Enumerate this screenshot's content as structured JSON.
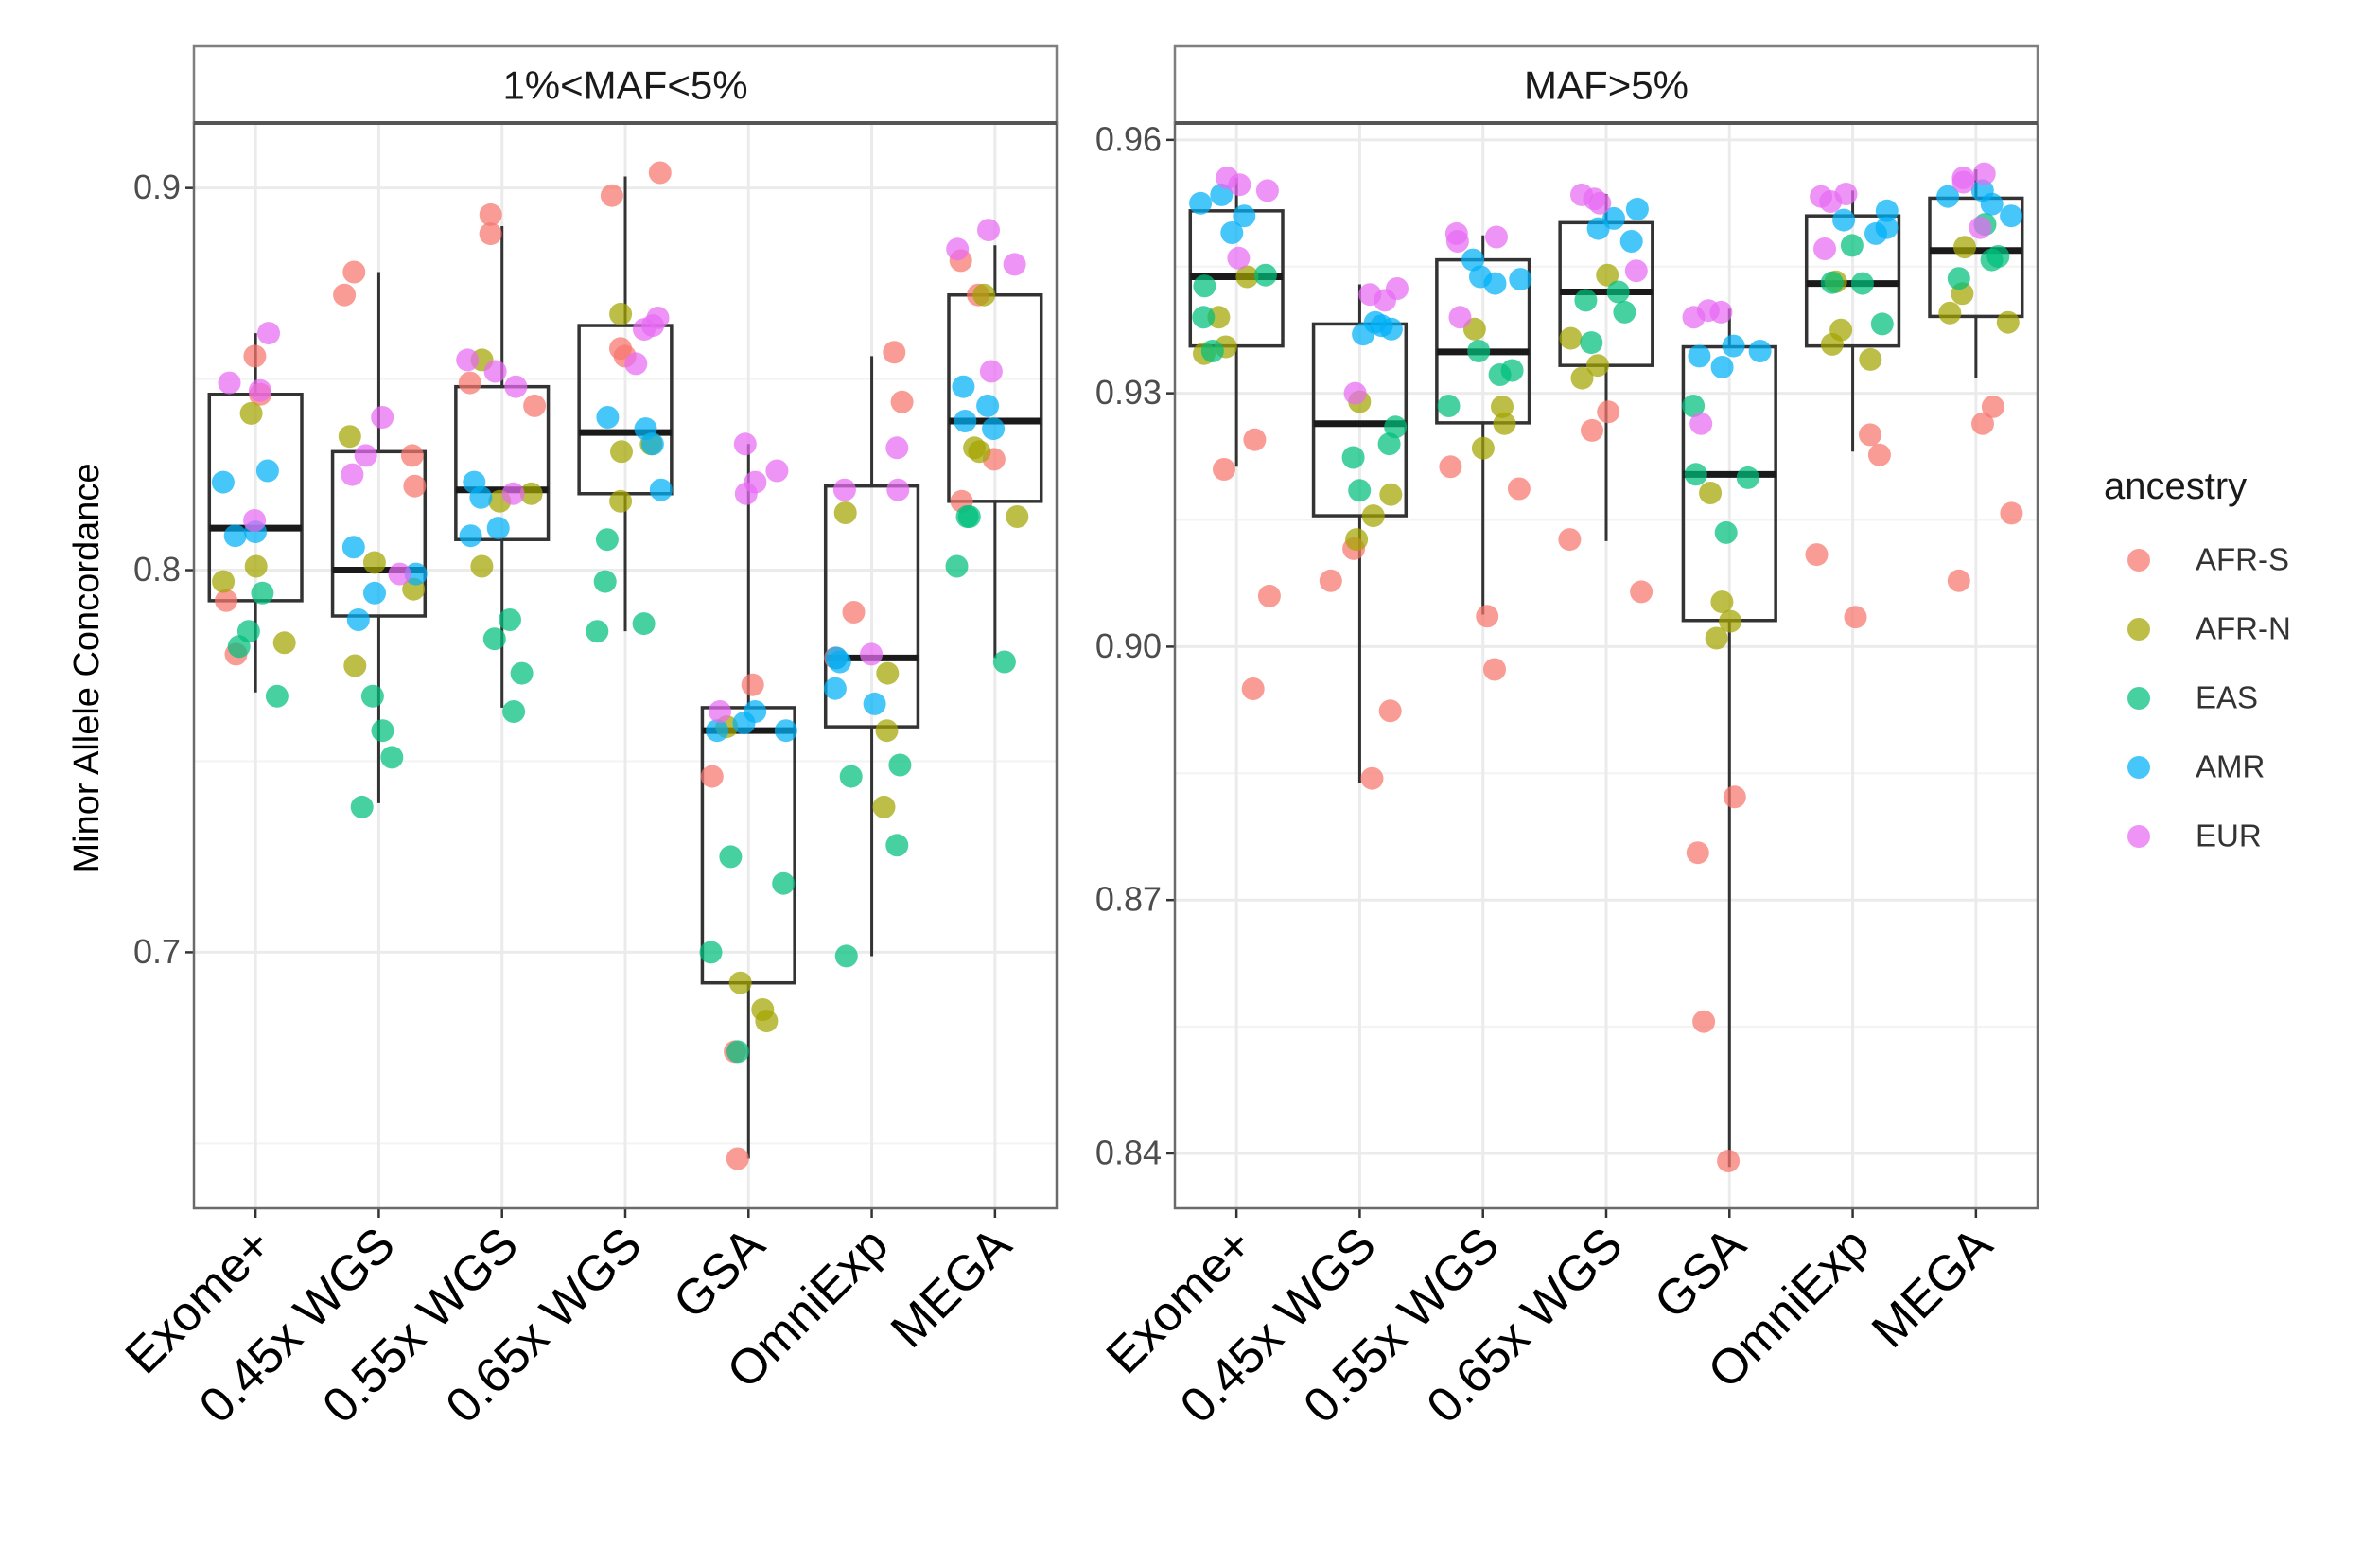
{
  "chart_data": {
    "type": "boxplot+jitter",
    "ylabel": "Minor Allele Concordance",
    "xlabel": "",
    "categories": [
      "Exome+",
      "0.45x WGS",
      "0.55x WGS",
      "0.65x WGS",
      "GSA",
      "OmniExp",
      "MEGA"
    ],
    "legend": {
      "title": "ancestry",
      "position": "right",
      "items": [
        {
          "name": "AFR-S",
          "color": "#F8766D"
        },
        {
          "name": "AFR-N",
          "color": "#A3A500"
        },
        {
          "name": "EAS",
          "color": "#00BF7D"
        },
        {
          "name": "AMR",
          "color": "#00B0F6"
        },
        {
          "name": "EUR",
          "color": "#E76BF3"
        }
      ]
    },
    "panels": [
      {
        "title": "1%<MAF<5%",
        "ylim": [
          0.633,
          0.917
        ],
        "yticks": [
          0.7,
          0.8,
          0.9
        ],
        "ytick_labels": [
          "0.7",
          "0.8",
          "0.9"
        ],
        "minor_gridlines": [
          0.65,
          0.75,
          0.85
        ],
        "boxes": [
          {
            "category": "Exome+",
            "lower": 0.768,
            "q1": 0.792,
            "median": 0.811,
            "q3": 0.846,
            "upper": 0.862
          },
          {
            "category": "0.45x WGS",
            "lower": 0.739,
            "q1": 0.788,
            "median": 0.8,
            "q3": 0.831,
            "upper": 0.878
          },
          {
            "category": "0.55x WGS",
            "lower": 0.764,
            "q1": 0.808,
            "median": 0.821,
            "q3": 0.848,
            "upper": 0.89
          },
          {
            "category": "0.65x WGS",
            "lower": 0.784,
            "q1": 0.82,
            "median": 0.836,
            "q3": 0.864,
            "upper": 0.903
          },
          {
            "category": "GSA",
            "lower": 0.646,
            "q1": 0.692,
            "median": 0.758,
            "q3": 0.764,
            "upper": 0.833
          },
          {
            "category": "OmniExp",
            "lower": 0.699,
            "q1": 0.759,
            "median": 0.777,
            "q3": 0.822,
            "upper": 0.856
          },
          {
            "category": "MEGA",
            "lower": 0.777,
            "q1": 0.818,
            "median": 0.839,
            "q3": 0.872,
            "upper": 0.885
          }
        ],
        "points": {
          "Exome+": {
            "AFR-S": [
              0.856,
              0.846,
              0.792,
              0.778
            ],
            "AFR-N": [
              0.841,
              0.801,
              0.797,
              0.781
            ],
            "EAS": [
              0.794,
              0.784,
              0.78,
              0.767
            ],
            "AMR": [
              0.826,
              0.823,
              0.81,
              0.809
            ],
            "EUR": [
              0.862,
              0.849,
              0.847,
              0.813
            ]
          },
          "0.45x WGS": {
            "AFR-S": [
              0.878,
              0.872,
              0.83,
              0.822
            ],
            "AFR-N": [
              0.835,
              0.802,
              0.795,
              0.775
            ],
            "EAS": [
              0.767,
              0.758,
              0.751,
              0.738
            ],
            "AMR": [
              0.806,
              0.799,
              0.794,
              0.787
            ],
            "EUR": [
              0.84,
              0.83,
              0.825,
              0.799
            ]
          },
          "0.55x WGS": {
            "AFR-S": [
              0.893,
              0.888,
              0.849,
              0.843
            ],
            "AFR-N": [
              0.855,
              0.82,
              0.818,
              0.801
            ],
            "EAS": [
              0.787,
              0.782,
              0.773,
              0.763
            ],
            "AMR": [
              0.823,
              0.819,
              0.811,
              0.809
            ],
            "EUR": [
              0.855,
              0.852,
              0.848,
              0.82
            ]
          },
          "0.65x WGS": {
            "AFR-S": [
              0.904,
              0.898,
              0.858,
              0.856
            ],
            "AFR-N": [
              0.867,
              0.833,
              0.831,
              0.818
            ],
            "EAS": [
              0.808,
              0.797,
              0.786,
              0.784
            ],
            "AMR": [
              0.84,
              0.837,
              0.833,
              0.821
            ],
            "EUR": [
              0.866,
              0.864,
              0.863,
              0.854
            ]
          },
          "GSA": {
            "AFR-S": [
              0.77,
              0.746,
              0.674,
              0.646
            ],
            "AFR-N": [
              0.759,
              0.692,
              0.685,
              0.682
            ],
            "EAS": [
              0.725,
              0.718,
              0.7,
              0.674
            ],
            "AMR": [
              0.763,
              0.76,
              0.758,
              0.758
            ],
            "EUR": [
              0.833,
              0.826,
              0.823,
              0.82,
              0.763
            ]
          },
          "OmniExp": {
            "AFR-S": [
              0.857,
              0.844,
              0.789,
              0.777
            ],
            "AFR-N": [
              0.815,
              0.773,
              0.758,
              0.738
            ],
            "EAS": [
              0.749,
              0.746,
              0.728,
              0.699
            ],
            "AMR": [
              0.777,
              0.776,
              0.769,
              0.765
            ],
            "EUR": [
              0.832,
              0.821,
              0.821,
              0.778
            ]
          },
          "MEGA": {
            "AFR-S": [
              0.881,
              0.872,
              0.829,
              0.818
            ],
            "AFR-N": [
              0.872,
              0.832,
              0.831,
              0.814
            ],
            "EAS": [
              0.814,
              0.814,
              0.801,
              0.776
            ],
            "AMR": [
              0.848,
              0.843,
              0.839,
              0.837
            ],
            "EUR": [
              0.889,
              0.884,
              0.88,
              0.852
            ]
          }
        }
      },
      {
        "title": "MAF>5%",
        "ylim": [
          0.8335,
          0.962
        ],
        "yticks": [
          0.84,
          0.87,
          0.9,
          0.93,
          0.96
        ],
        "ytick_labels": [
          "0.84",
          "0.87",
          "0.90",
          "0.93",
          "0.96"
        ],
        "minor_gridlines": [
          0.855,
          0.885,
          0.915,
          0.945
        ],
        "boxes": [
          {
            "category": "Exome+",
            "lower": 0.9213,
            "q1": 0.9356,
            "median": 0.9438,
            "q3": 0.9516,
            "upper": 0.9555
          },
          {
            "category": "0.45x WGS",
            "lower": 0.8838,
            "q1": 0.9155,
            "median": 0.9264,
            "q3": 0.9382,
            "upper": 0.9429
          },
          {
            "category": "0.55x WGS",
            "lower": 0.9038,
            "q1": 0.9265,
            "median": 0.9349,
            "q3": 0.9458,
            "upper": 0.9487
          },
          {
            "category": "0.65x WGS",
            "lower": 0.9125,
            "q1": 0.9333,
            "median": 0.942,
            "q3": 0.9502,
            "upper": 0.9536
          },
          {
            "category": "GSA",
            "lower": 0.8384,
            "q1": 0.9031,
            "median": 0.9204,
            "q3": 0.9355,
            "upper": 0.94
          },
          {
            "category": "OmniExp",
            "lower": 0.9231,
            "q1": 0.9356,
            "median": 0.943,
            "q3": 0.951,
            "upper": 0.954
          },
          {
            "category": "MEGA",
            "lower": 0.9318,
            "q1": 0.9391,
            "median": 0.9469,
            "q3": 0.9531,
            "upper": 0.9565
          }
        ],
        "points": {
          "Exome+": {
            "AFR-S": [
              0.9245,
              0.921,
              0.906,
              0.895
            ],
            "AFR-N": [
              0.9438,
              0.939,
              0.9355,
              0.9347
            ],
            "EAS": [
              0.944,
              0.9427,
              0.939,
              0.935
            ],
            "AMR": [
              0.9535,
              0.9525,
              0.951,
              0.949
            ],
            "EUR": [
              0.9555,
              0.9547,
              0.954,
              0.946
            ]
          },
          "0.45x WGS": {
            "AFR-S": [
              0.9116,
              0.9078,
              0.8924,
              0.8844
            ],
            "AFR-N": [
              0.929,
              0.918,
              0.9155,
              0.9127
            ],
            "EAS": [
              0.926,
              0.924,
              0.9224,
              0.9185
            ],
            "AMR": [
              0.9384,
              0.938,
              0.9376,
              0.937
            ],
            "EUR": [
              0.9424,
              0.9417,
              0.941,
              0.93
            ]
          },
          "0.55x WGS": {
            "AFR-S": [
              0.9213,
              0.9187,
              0.9036,
              0.8973
            ],
            "AFR-N": [
              0.9376,
              0.9284,
              0.9264,
              0.9235
            ],
            "EAS": [
              0.935,
              0.9327,
              0.9322,
              0.9285
            ],
            "AMR": [
              0.9458,
              0.9438,
              0.9435,
              0.943
            ],
            "EUR": [
              0.9489,
              0.9485,
              0.948,
              0.939
            ]
          },
          "0.65x WGS": {
            "AFR-S": [
              0.9278,
              0.9256,
              0.9127,
              0.9065
            ],
            "AFR-N": [
              0.944,
              0.9365,
              0.9333,
              0.9318
            ],
            "EAS": [
              0.942,
              0.941,
              0.9396,
              0.936
            ],
            "AMR": [
              0.9518,
              0.9507,
              0.9495,
              0.948
            ],
            "EUR": [
              0.9535,
              0.953,
              0.9525,
              0.9445
            ]
          },
          "GSA": {
            "AFR-S": [
              0.8822,
              0.8756,
              0.8556,
              0.8391
            ],
            "AFR-N": [
              0.9182,
              0.9053,
              0.903,
              0.901
            ],
            "EAS": [
              0.9285,
              0.9204,
              0.92,
              0.9135
            ],
            "AMR": [
              0.9356,
              0.935,
              0.9344,
              0.9331
            ],
            "EUR": [
              0.9398,
              0.9396,
              0.939,
              0.9264
            ]
          },
          "OmniExp": {
            "AFR-S": [
              0.9251,
              0.9227,
              0.9109,
              0.9035
            ],
            "AFR-N": [
              0.9432,
              0.9375,
              0.9358,
              0.934
            ],
            "EAS": [
              0.9475,
              0.9431,
              0.943,
              0.9382
            ],
            "AMR": [
              0.9516,
              0.9505,
              0.9496,
              0.9489
            ],
            "EUR": [
              0.9536,
              0.9533,
              0.9527,
              0.9471
            ]
          },
          "MEGA": {
            "AFR-S": [
              0.9284,
              0.9264,
              0.9158,
              0.9078
            ],
            "AFR-N": [
              0.9473,
              0.9418,
              0.9395,
              0.9384
            ],
            "EAS": [
              0.95,
              0.9462,
              0.9458,
              0.9436
            ],
            "AMR": [
              0.954,
              0.9533,
              0.9524,
              0.951
            ],
            "EUR": [
              0.956,
              0.9555,
              0.955,
              0.9496
            ]
          }
        }
      }
    ]
  }
}
